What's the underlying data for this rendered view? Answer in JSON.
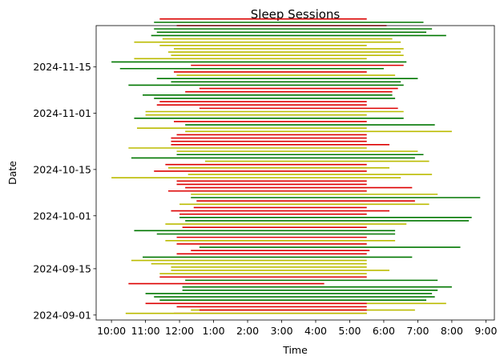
{
  "chart_data": {
    "type": "bar",
    "orientation": "horizontal-floating",
    "title": "Sleep Sessions",
    "xlabel": "Time",
    "ylabel": "Date",
    "x_ticks": [
      "10:00",
      "11:00",
      "12:00",
      "1:00",
      "2:00",
      "3:00",
      "4:00",
      "5:00",
      "6:00",
      "7:00",
      "8:00",
      "9:00"
    ],
    "x_domain_hours": [
      9.55,
      21.25
    ],
    "y_ticks": [
      "2024-09-01",
      "2024-09-15",
      "2024-10-01",
      "2024-10-15",
      "2024-11-01",
      "2024-11-15"
    ],
    "y_domain_days": [
      -1.5,
      87.5
    ],
    "grid": false,
    "legend": "none",
    "colors": {
      "red": "#dd0000",
      "green": "#007700",
      "olive": "#bbbb00"
    },
    "sessions": [
      {
        "date": "2024-09-01",
        "start": "11:50",
        "end": "17:30",
        "color": "red"
      },
      {
        "date": "2024-09-01",
        "start": "10:25",
        "end": "17:30",
        "color": "olive"
      },
      {
        "date": "2024-09-02",
        "start": "12:20",
        "end": "18:55",
        "color": "olive"
      },
      {
        "date": "2024-09-02",
        "start": "12:35",
        "end": "17:30",
        "color": "red"
      },
      {
        "date": "2024-09-03",
        "start": "11:55",
        "end": "17:30",
        "color": "red"
      },
      {
        "date": "2024-09-04",
        "start": "12:30",
        "end": "19:50",
        "color": "olive"
      },
      {
        "date": "2024-09-04",
        "start": "11:00",
        "end": "17:30",
        "color": "red"
      },
      {
        "date": "2024-09-05",
        "start": "11:25",
        "end": "19:15",
        "color": "green"
      },
      {
        "date": "2024-09-06",
        "start": "11:15",
        "end": "19:30",
        "color": "green"
      },
      {
        "date": "2024-09-07",
        "start": "11:00",
        "end": "19:25",
        "color": "green"
      },
      {
        "date": "2024-09-08",
        "start": "12:05",
        "end": "19:35",
        "color": "green"
      },
      {
        "date": "2024-09-09",
        "start": "12:05",
        "end": "20:00",
        "color": "green"
      },
      {
        "date": "2024-09-10",
        "start": "10:30",
        "end": "16:15",
        "color": "red"
      },
      {
        "date": "2024-09-11",
        "start": "12:10",
        "end": "19:35",
        "color": "green"
      },
      {
        "date": "2024-09-12",
        "start": "11:25",
        "end": "17:30",
        "color": "red"
      },
      {
        "date": "2024-09-13",
        "start": "11:25",
        "end": "17:30",
        "color": "olive"
      },
      {
        "date": "2024-09-14",
        "start": "11:45",
        "end": "18:10",
        "color": "olive"
      },
      {
        "date": "2024-09-15",
        "start": "11:45",
        "end": "17:30",
        "color": "olive"
      },
      {
        "date": "2024-09-16",
        "start": "11:10",
        "end": "17:30",
        "color": "olive"
      },
      {
        "date": "2024-09-17",
        "start": "10:35",
        "end": "17:30",
        "color": "olive"
      },
      {
        "date": "2024-09-18",
        "start": "10:55",
        "end": "18:50",
        "color": "green"
      },
      {
        "date": "2024-09-19",
        "start": "11:55",
        "end": "17:30",
        "color": "red"
      },
      {
        "date": "2024-09-20",
        "start": "12:20",
        "end": "17:35",
        "color": "red"
      },
      {
        "date": "2024-09-21",
        "start": "12:35",
        "end": "20:15",
        "color": "green"
      },
      {
        "date": "2024-09-22",
        "start": "11:55",
        "end": "17:30",
        "color": "red"
      },
      {
        "date": "2024-09-23",
        "start": "11:35",
        "end": "18:20",
        "color": "olive"
      },
      {
        "date": "2024-09-24",
        "start": "11:55",
        "end": "17:30",
        "color": "red"
      },
      {
        "date": "2024-09-25",
        "start": "11:20",
        "end": "18:20",
        "color": "green"
      },
      {
        "date": "2024-09-26",
        "start": "10:40",
        "end": "18:20",
        "color": "green"
      },
      {
        "date": "2024-09-27",
        "start": "12:05",
        "end": "17:30",
        "color": "red"
      },
      {
        "date": "2024-09-28",
        "start": "11:35",
        "end": "18:40",
        "color": "olive"
      },
      {
        "date": "2024-09-29",
        "start": "12:10",
        "end": "20:30",
        "color": "green"
      },
      {
        "date": "2024-09-30",
        "start": "12:00",
        "end": "20:35",
        "color": "green"
      },
      {
        "date": "2024-10-01",
        "start": "12:00",
        "end": "17:30",
        "color": "red"
      },
      {
        "date": "2024-10-02",
        "start": "11:45",
        "end": "18:10",
        "color": "red"
      },
      {
        "date": "2024-10-03",
        "start": "12:25",
        "end": "17:30",
        "color": "red"
      },
      {
        "date": "2024-10-04",
        "start": "12:00",
        "end": "19:20",
        "color": "olive"
      },
      {
        "date": "2024-10-05",
        "start": "12:30",
        "end": "18:55",
        "color": "red"
      },
      {
        "date": "2024-10-06",
        "start": "12:20",
        "end": "20:50",
        "color": "green"
      },
      {
        "date": "2024-10-07",
        "start": "12:20",
        "end": "19:35",
        "color": "olive"
      },
      {
        "date": "2024-10-08",
        "start": "11:40",
        "end": "17:30",
        "color": "red"
      },
      {
        "date": "2024-10-09",
        "start": "12:10",
        "end": "18:50",
        "color": "red"
      },
      {
        "date": "2024-10-10",
        "start": "11:55",
        "end": "17:30",
        "color": "red"
      },
      {
        "date": "2024-10-11",
        "start": "11:55",
        "end": "17:30",
        "color": "red"
      },
      {
        "date": "2024-10-12",
        "start": "10:00",
        "end": "18:30",
        "color": "olive"
      },
      {
        "date": "2024-10-13",
        "start": "12:15",
        "end": "19:25",
        "color": "olive"
      },
      {
        "date": "2024-10-14",
        "start": "11:15",
        "end": "17:30",
        "color": "red"
      },
      {
        "date": "2024-10-15",
        "start": "11:40",
        "end": "18:10",
        "color": "olive"
      },
      {
        "date": "2024-10-16",
        "start": "11:35",
        "end": "17:30",
        "color": "red"
      },
      {
        "date": "2024-10-17",
        "start": "12:45",
        "end": "19:20",
        "color": "olive"
      },
      {
        "date": "2024-10-18",
        "start": "10:35",
        "end": "18:55",
        "color": "green"
      },
      {
        "date": "2024-10-19",
        "start": "11:55",
        "end": "19:10",
        "color": "green"
      },
      {
        "date": "2024-10-20",
        "start": "11:55",
        "end": "19:00",
        "color": "olive"
      },
      {
        "date": "2024-10-21",
        "start": "10:30",
        "end": "17:30",
        "color": "olive"
      },
      {
        "date": "2024-10-22",
        "start": "11:45",
        "end": "18:10",
        "color": "red"
      },
      {
        "date": "2024-10-23",
        "start": "11:45",
        "end": "17:30",
        "color": "red"
      },
      {
        "date": "2024-10-24",
        "start": "11:45",
        "end": "17:30",
        "color": "red"
      },
      {
        "date": "2024-10-25",
        "start": "11:55",
        "end": "17:30",
        "color": "red"
      },
      {
        "date": "2024-10-26",
        "start": "12:10",
        "end": "20:00",
        "color": "olive"
      },
      {
        "date": "2024-10-27",
        "start": "10:45",
        "end": "17:30",
        "color": "olive"
      },
      {
        "date": "2024-10-28",
        "start": "12:10",
        "end": "19:30",
        "color": "green"
      },
      {
        "date": "2024-10-29",
        "start": "11:50",
        "end": "17:30",
        "color": "red"
      },
      {
        "date": "2024-10-30",
        "start": "10:40",
        "end": "18:35",
        "color": "green"
      },
      {
        "date": "2024-10-31",
        "start": "11:00",
        "end": "17:30",
        "color": "olive"
      },
      {
        "date": "2024-11-01",
        "start": "11:00",
        "end": "18:35",
        "color": "olive"
      },
      {
        "date": "2024-11-02",
        "start": "12:35",
        "end": "18:25",
        "color": "red"
      },
      {
        "date": "2024-11-03",
        "start": "11:20",
        "end": "17:30",
        "color": "red"
      },
      {
        "date": "2024-11-04",
        "start": "11:25",
        "end": "17:30",
        "color": "red"
      },
      {
        "date": "2024-11-05",
        "start": "11:15",
        "end": "18:20",
        "color": "green"
      },
      {
        "date": "2024-11-06",
        "start": "10:55",
        "end": "18:15",
        "color": "green"
      },
      {
        "date": "2024-11-07",
        "start": "12:10",
        "end": "18:15",
        "color": "red"
      },
      {
        "date": "2024-11-08",
        "start": "12:35",
        "end": "18:25",
        "color": "red"
      },
      {
        "date": "2024-11-09",
        "start": "10:30",
        "end": "18:35",
        "color": "green"
      },
      {
        "date": "2024-11-10",
        "start": "11:45",
        "end": "18:30",
        "color": "green"
      },
      {
        "date": "2024-11-11",
        "start": "11:20",
        "end": "19:00",
        "color": "green"
      },
      {
        "date": "2024-11-12",
        "start": "11:55",
        "end": "18:20",
        "color": "olive"
      },
      {
        "date": "2024-11-13",
        "start": "11:50",
        "end": "17:30",
        "color": "red"
      },
      {
        "date": "2024-11-14",
        "start": "10:15",
        "end": "18:00",
        "color": "green"
      },
      {
        "date": "2024-11-15",
        "start": "12:20",
        "end": "18:35",
        "color": "red"
      },
      {
        "date": "2024-11-16",
        "start": "10:00",
        "end": "18:40",
        "color": "green"
      },
      {
        "date": "2024-11-17",
        "start": "10:40",
        "end": "17:30",
        "color": "olive"
      },
      {
        "date": "2024-11-18",
        "start": "11:45",
        "end": "18:35",
        "color": "olive"
      },
      {
        "date": "2024-11-19",
        "start": "11:40",
        "end": "18:30",
        "color": "olive"
      },
      {
        "date": "2024-11-20",
        "start": "11:50",
        "end": "18:35",
        "color": "olive"
      },
      {
        "date": "2024-11-21",
        "start": "11:25",
        "end": "17:30",
        "color": "olive"
      },
      {
        "date": "2024-11-22",
        "start": "10:40",
        "end": "18:30",
        "color": "olive"
      },
      {
        "date": "2024-11-23",
        "start": "11:30",
        "end": "18:15",
        "color": "olive"
      },
      {
        "date": "2024-11-24",
        "start": "11:10",
        "end": "19:50",
        "color": "green"
      },
      {
        "date": "2024-11-25",
        "start": "11:20",
        "end": "19:15",
        "color": "green"
      },
      {
        "date": "2024-11-26",
        "start": "11:15",
        "end": "19:25",
        "color": "green"
      },
      {
        "date": "2024-11-27",
        "start": "11:55",
        "end": "18:05",
        "color": "red"
      },
      {
        "date": "2024-11-28",
        "start": "11:15",
        "end": "19:10",
        "color": "green"
      },
      {
        "date": "2024-11-29",
        "start": "11:25",
        "end": "17:30",
        "color": "red"
      }
    ]
  }
}
